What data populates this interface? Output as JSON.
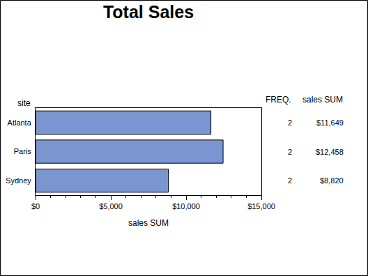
{
  "chart_data": {
    "type": "bar",
    "title": "Total Sales",
    "orientation": "horizontal",
    "categories": [
      "Atlanta",
      "Paris",
      "Sydney"
    ],
    "values": [
      11649,
      12458,
      8820
    ],
    "value_labels": [
      "$11,649",
      "$12,458",
      "$8,820"
    ],
    "freq": [
      2,
      2,
      2
    ],
    "columns": [
      "FREQ.",
      "sales SUM"
    ],
    "color": "#7b95d0",
    "xlabel": "sales SUM",
    "ylabel": "site",
    "xlim": [
      0,
      15000
    ],
    "xticks": [
      {
        "value": 0,
        "label": "$0"
      },
      {
        "value": 5000,
        "label": "$5,000"
      },
      {
        "value": 10000,
        "label": "$10,000"
      },
      {
        "value": 15000,
        "label": "$15,000"
      }
    ],
    "grid": false
  }
}
